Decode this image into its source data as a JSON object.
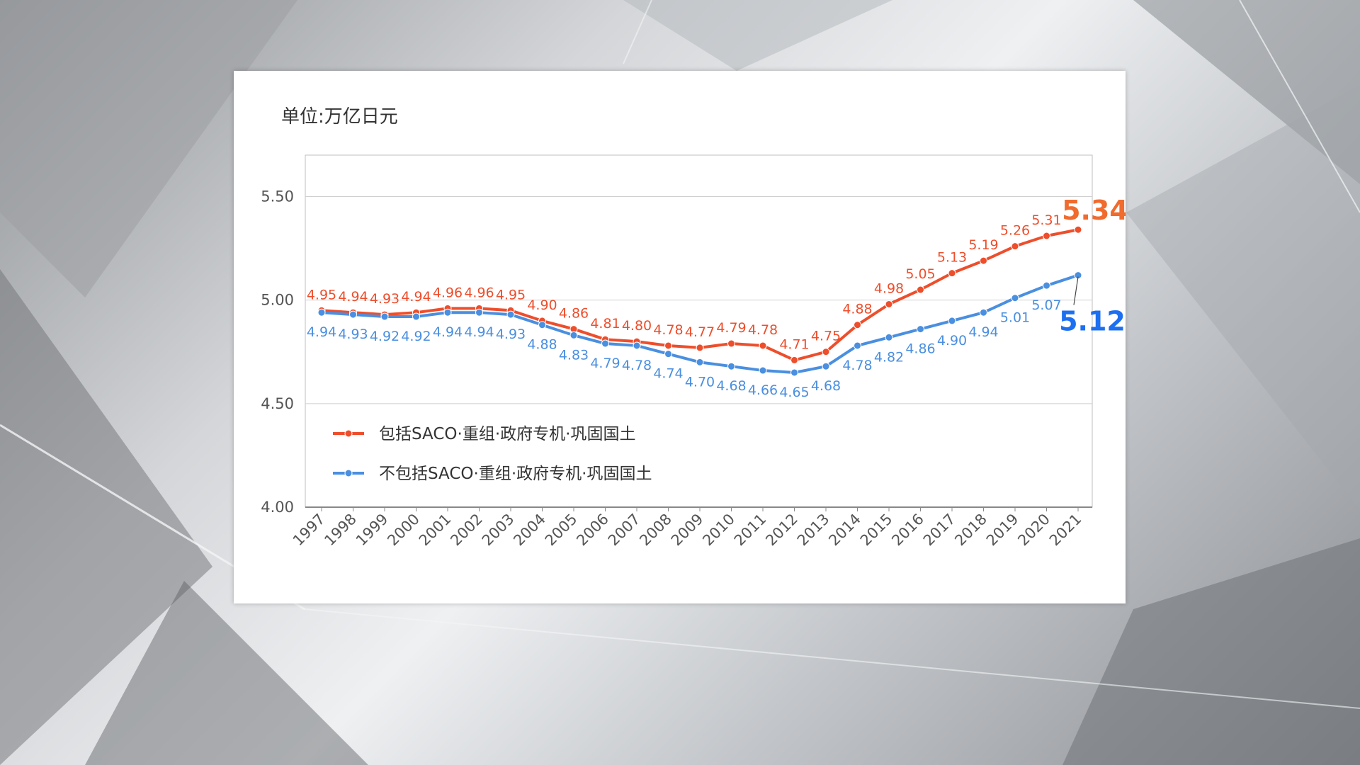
{
  "unit_label": "单位:万亿日元",
  "colors": {
    "series_1": "#ee4e2b",
    "series_2": "#4a8fe0",
    "series_1_big": "#f06b2e",
    "series_2_big": "#1d6ff2"
  },
  "chart_data": {
    "type": "line",
    "title": "",
    "xlabel": "",
    "ylabel": "单位:万亿日元",
    "ylim": [
      4.0,
      5.5
    ],
    "yticks": [
      "4.00",
      "4.50",
      "5.00",
      "5.50"
    ],
    "grid": true,
    "legend_position": "bottom-left",
    "x": [
      "1997",
      "1998",
      "1999",
      "2000",
      "2001",
      "2002",
      "2003",
      "2004",
      "2005",
      "2006",
      "2007",
      "2008",
      "2009",
      "2010",
      "2011",
      "2012",
      "2013",
      "2014",
      "2015",
      "2016",
      "2017",
      "2018",
      "2019",
      "2020",
      "2021"
    ],
    "series": [
      {
        "name": "包括SACO·重组·政府专机·巩固国土",
        "values": [
          4.95,
          4.94,
          4.93,
          4.94,
          4.96,
          4.96,
          4.95,
          4.9,
          4.86,
          4.81,
          4.8,
          4.78,
          4.77,
          4.79,
          4.78,
          4.71,
          4.75,
          4.88,
          4.98,
          5.05,
          5.13,
          5.19,
          5.26,
          5.31,
          5.34
        ],
        "labels": [
          "4.95",
          "4.94",
          "4.93",
          "4.94",
          "4.96",
          "4.96",
          "4.95",
          "4.90",
          "4.86",
          "4.81",
          "4.80",
          "4.78",
          "4.77",
          "4.79",
          "4.78",
          "4.71",
          "4.75",
          "4.88",
          "4.98",
          "5.05",
          "5.13",
          "5.19",
          "5.26",
          "5.31",
          "5.34"
        ]
      },
      {
        "name": "不包括SACO·重组·政府专机·巩固国土",
        "values": [
          4.94,
          4.93,
          4.92,
          4.92,
          4.94,
          4.94,
          4.93,
          4.88,
          4.83,
          4.79,
          4.78,
          4.74,
          4.7,
          4.68,
          4.66,
          4.65,
          4.68,
          4.78,
          4.82,
          4.86,
          4.9,
          4.94,
          5.01,
          5.07,
          5.12
        ],
        "labels": [
          "4.94",
          "4.93",
          "4.92",
          "4.92",
          "4.94",
          "4.94",
          "4.93",
          "4.88",
          "4.83",
          "4.79",
          "4.78",
          "4.74",
          "4.70",
          "4.68",
          "4.66",
          "4.65",
          "4.68",
          "4.78",
          "4.82",
          "4.86",
          "4.90",
          "4.94",
          "5.01",
          "5.07",
          "5.12"
        ]
      }
    ]
  }
}
